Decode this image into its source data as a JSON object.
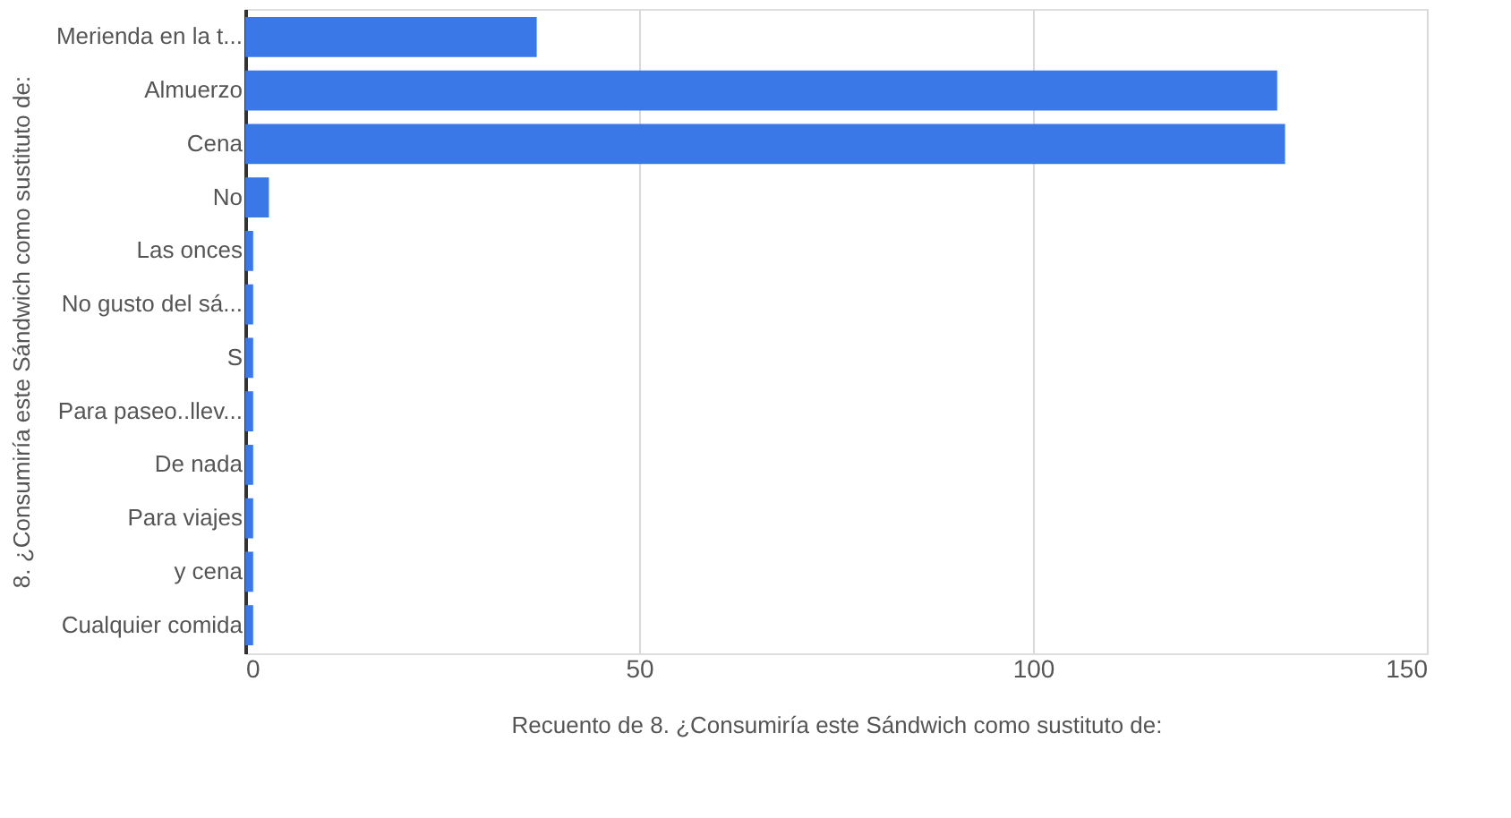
{
  "chart_data": {
    "type": "bar",
    "orientation": "horizontal",
    "categories": [
      "Merienda en la t...",
      "Almuerzo",
      "Cena",
      "No",
      "Las onces",
      "No gusto del sá...",
      "S",
      "Para paseo..llev...",
      "De nada",
      "Para viajes",
      "y cena",
      "Cualquier comida"
    ],
    "series": [
      {
        "color": "#3b78e7",
        "values": [
          37,
          131,
          132,
          3,
          1,
          1,
          1,
          1,
          1,
          1,
          1,
          1
        ]
      }
    ],
    "xlabel": "Recuento de 8. ¿Consumiría este Sándwich como sustituto de:",
    "ylabel": "8. ¿Consumiría este Sándwich como sustituto de:",
    "xlim": [
      0,
      150
    ],
    "xticks": [
      0,
      50,
      100,
      150
    ],
    "grid": "x"
  }
}
